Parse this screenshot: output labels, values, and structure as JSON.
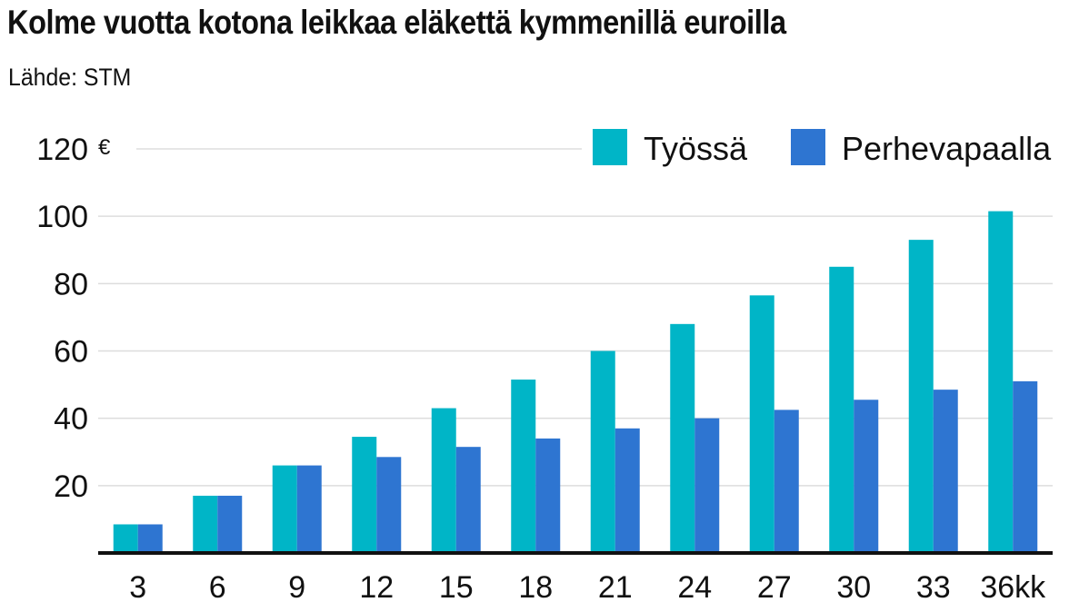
{
  "chart_data": {
    "type": "bar",
    "title": "Kolme vuotta kotona leikkaa eläkettä kymmenillä euroilla",
    "subtitle": "Lähde: STM",
    "unit": "€",
    "categories": [
      "3",
      "6",
      "9",
      "12",
      "15",
      "18",
      "21",
      "24",
      "27",
      "30",
      "33",
      "36kk"
    ],
    "series": [
      {
        "name": "Työssä",
        "color": "#00b5c7",
        "values": [
          8.5,
          17,
          26,
          34.5,
          43,
          51.5,
          60,
          68,
          76.5,
          85,
          93,
          101.5
        ]
      },
      {
        "name": "Perhevapaalla",
        "color": "#2e75d1",
        "values": [
          8.5,
          17,
          26,
          28.5,
          31.5,
          34,
          37,
          40,
          42.5,
          45.5,
          48.5,
          51
        ]
      }
    ],
    "y_ticks": [
      "20",
      "40",
      "60",
      "80",
      "100",
      "120"
    ],
    "ylim": [
      0,
      120
    ],
    "grid": true,
    "legend_position": "top-right"
  }
}
